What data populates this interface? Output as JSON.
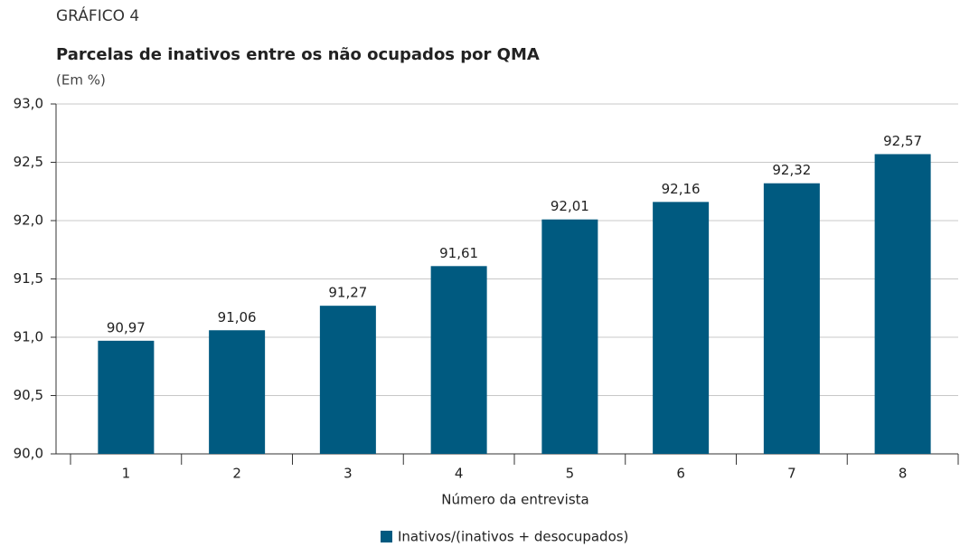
{
  "chart_data": {
    "type": "bar",
    "label": "GRÁFICO 4",
    "title": "Parcelas de inativos entre os não ocupados por QMA",
    "subtitle": "(Em %)",
    "x_label": "Número da entrevista",
    "categories": [
      "1",
      "2",
      "3",
      "4",
      "5",
      "6",
      "7",
      "8"
    ],
    "series": [
      {
        "name": "Inativos/(inativos + desocupados)",
        "color": "#005a80",
        "values": [
          90.97,
          91.06,
          91.27,
          91.61,
          92.01,
          92.16,
          92.32,
          92.57
        ],
        "value_labels": [
          "90,97",
          "91,06",
          "91,27",
          "91,61",
          "92,01",
          "92,16",
          "92,32",
          "92,57"
        ]
      }
    ],
    "ylim": [
      90,
      93
    ],
    "yticks": [
      {
        "value": 90,
        "label": "90,0"
      },
      {
        "value": 90.5,
        "label": "90,5"
      },
      {
        "value": 91,
        "label": "91,0"
      },
      {
        "value": 91.5,
        "label": "91,5"
      },
      {
        "value": 92,
        "label": "92,0"
      },
      {
        "value": 92.5,
        "label": "92,5"
      },
      {
        "value": 93,
        "label": "93,0"
      }
    ],
    "grid": true,
    "legend": "bottom"
  }
}
